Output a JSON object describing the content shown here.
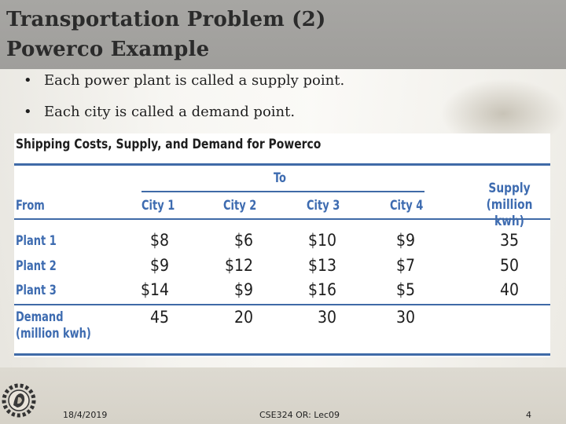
{
  "slide": {
    "title_line1": "Transportation Problem (2)",
    "title_line2": "Powerco Example",
    "bullets": [
      {
        "prefix": "Each power plant is called a ",
        "emph": "supply point",
        "suffix": "."
      },
      {
        "prefix": "Each city is called a ",
        "emph": "demand point",
        "suffix": "."
      }
    ]
  },
  "table": {
    "heading": "Shipping Costs, Supply, and Demand for Powerco",
    "to_label": "To",
    "from_label": "From",
    "columns": [
      "City 1",
      "City 2",
      "City 3",
      "City 4"
    ],
    "supply_header_line1": "Supply",
    "supply_header_line2": "(million kwh)",
    "rows": [
      {
        "label": "Plant 1",
        "costs": [
          "$8",
          "$6",
          "$10",
          "$9"
        ],
        "supply": "35"
      },
      {
        "label": "Plant 2",
        "costs": [
          "$9",
          "$12",
          "$13",
          "$7"
        ],
        "supply": "50"
      },
      {
        "label": "Plant 3",
        "costs": [
          "$14",
          "$9",
          "$16",
          "$5"
        ],
        "supply": "40"
      }
    ],
    "demand_label_line1": "Demand",
    "demand_label_line2": "(million kwh)",
    "demand": [
      "45",
      "20",
      "30",
      "30"
    ]
  },
  "footer": {
    "date": "18/4/2019",
    "course": "CSE324 OR: Lec09",
    "page": "4"
  },
  "colors": {
    "title_bar": "#a7a6a3",
    "accent_blue": "#3d6bb0",
    "rule_blue": "#3f6aa7"
  },
  "icons": {
    "logo": "university-logo-icon"
  }
}
